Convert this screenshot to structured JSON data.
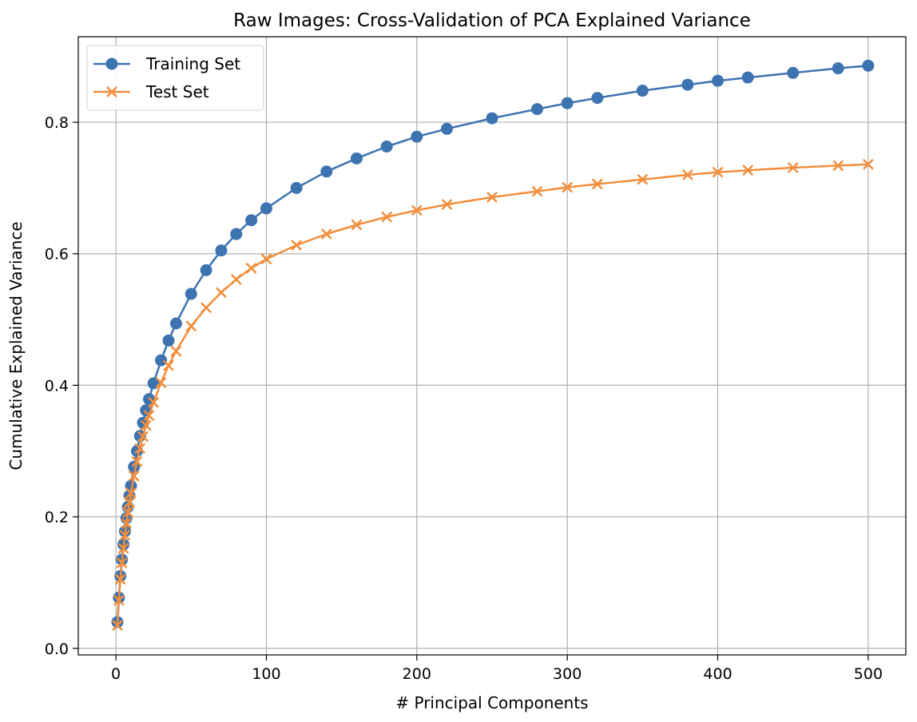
{
  "chart_data": {
    "type": "line",
    "title": "Raw Images: Cross-Validation of PCA Explained Variance",
    "xlabel": "# Principal Components",
    "ylabel": "Cumulative Explained Variance",
    "xlim": [
      -25,
      525
    ],
    "ylim": [
      -0.01,
      0.93
    ],
    "xticks": [
      0,
      100,
      200,
      300,
      400,
      500
    ],
    "xtick_labels": [
      "0",
      "100",
      "200",
      "300",
      "400",
      "500"
    ],
    "yticks": [
      0.0,
      0.2,
      0.4,
      0.6,
      0.8
    ],
    "ytick_labels": [
      "0.0",
      "0.2",
      "0.4",
      "0.6",
      "0.8"
    ],
    "grid": true,
    "legend_position": "top-left",
    "series": [
      {
        "name": "Training Set",
        "color": "#3d73b0",
        "marker": "circle",
        "x": [
          1,
          2,
          3,
          4,
          5,
          6,
          7,
          8,
          9,
          10,
          12,
          14,
          16,
          18,
          20,
          22,
          25,
          30,
          35,
          40,
          50,
          60,
          70,
          80,
          90,
          100,
          120,
          140,
          160,
          180,
          200,
          220,
          250,
          280,
          300,
          320,
          350,
          380,
          400,
          420,
          450,
          480,
          500
        ],
        "y": [
          0.04,
          0.077,
          0.11,
          0.135,
          0.158,
          0.178,
          0.198,
          0.215,
          0.232,
          0.247,
          0.276,
          0.3,
          0.323,
          0.343,
          0.362,
          0.379,
          0.403,
          0.438,
          0.468,
          0.494,
          0.539,
          0.575,
          0.605,
          0.63,
          0.651,
          0.669,
          0.7,
          0.725,
          0.745,
          0.763,
          0.778,
          0.79,
          0.806,
          0.82,
          0.829,
          0.837,
          0.848,
          0.857,
          0.863,
          0.868,
          0.875,
          0.882,
          0.886
        ]
      },
      {
        "name": "Test Set",
        "color": "#f28e3c",
        "marker": "x",
        "x": [
          1,
          2,
          3,
          4,
          5,
          6,
          7,
          8,
          9,
          10,
          12,
          14,
          16,
          18,
          20,
          22,
          25,
          30,
          35,
          40,
          50,
          60,
          70,
          80,
          90,
          100,
          120,
          140,
          160,
          180,
          200,
          220,
          250,
          280,
          300,
          320,
          350,
          380,
          400,
          420,
          450,
          480,
          500
        ],
        "y": [
          0.035,
          0.073,
          0.105,
          0.13,
          0.152,
          0.172,
          0.19,
          0.207,
          0.222,
          0.236,
          0.262,
          0.284,
          0.304,
          0.322,
          0.339,
          0.354,
          0.374,
          0.404,
          0.43,
          0.452,
          0.49,
          0.518,
          0.541,
          0.561,
          0.578,
          0.592,
          0.613,
          0.63,
          0.644,
          0.656,
          0.666,
          0.675,
          0.686,
          0.695,
          0.701,
          0.706,
          0.713,
          0.72,
          0.724,
          0.727,
          0.731,
          0.734,
          0.736
        ]
      }
    ]
  }
}
